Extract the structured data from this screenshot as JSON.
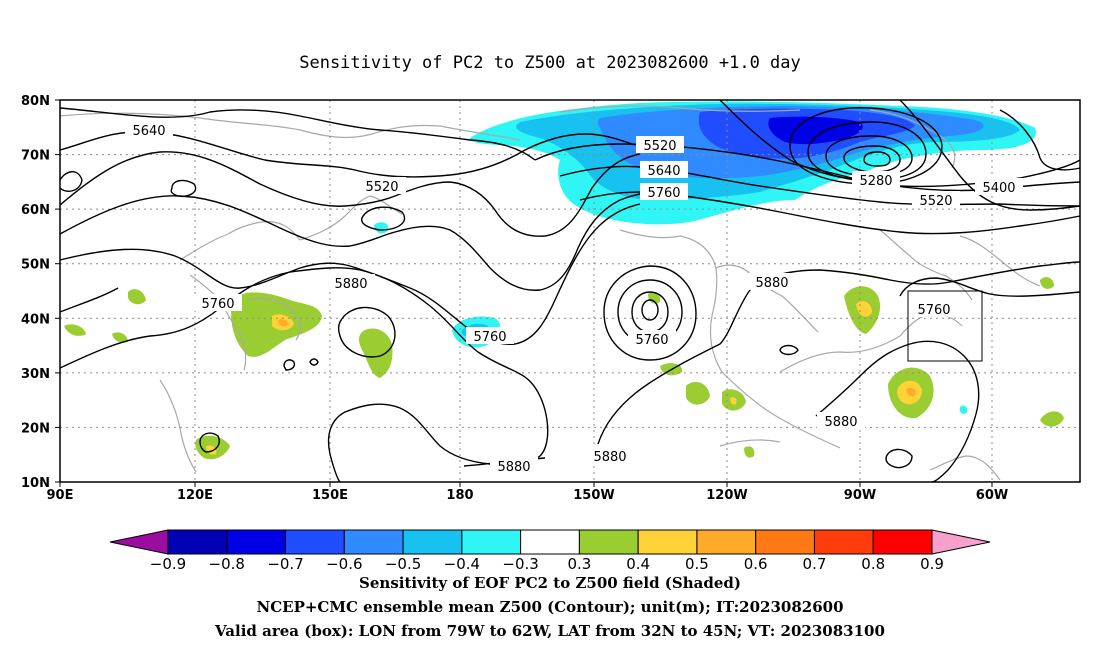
{
  "title": "Sensitivity of PC2 to Z500 at 2023082600 +1.0 day",
  "lat_ticks": [
    "80N",
    "70N",
    "60N",
    "50N",
    "40N",
    "30N",
    "20N",
    "10N"
  ],
  "lon_ticks": [
    "90E",
    "120E",
    "150E",
    "180",
    "150W",
    "120W",
    "90W",
    "60W"
  ],
  "contour_labels": [
    "5640",
    "5520",
    "5520",
    "5640",
    "5760",
    "5280",
    "5400",
    "5520",
    "5760",
    "5880",
    "5760",
    "5760",
    "5880",
    "5760",
    "5880",
    "5880",
    "5880"
  ],
  "colorbar": {
    "labels": [
      "−0.9",
      "−0.8",
      "−0.7",
      "−0.6",
      "−0.5",
      "−0.4",
      "−0.3",
      "0.3",
      "0.4",
      "0.5",
      "0.6",
      "0.7",
      "0.8",
      "0.9"
    ],
    "colors": [
      "#9a0da0",
      "#0000b5",
      "#0000e6",
      "#1f4dff",
      "#2f8bff",
      "#17c1f0",
      "#2ff5f5",
      "#ffffff",
      "#9acd32",
      "#ffd237",
      "#ffaa28",
      "#ff7a14",
      "#ff3c0a",
      "#ff0000",
      "#f8a0cc"
    ]
  },
  "footer": [
    "Sensitivity of EOF PC2 to Z500 field (Shaded)",
    "NCEP+CMC ensemble mean Z500 (Contour); unit(m); IT:2023082600",
    "Valid area (box): LON from 79W to 62W, LAT from 32N to 45N; VT: 2023083100"
  ],
  "valid_box": {
    "lon_from": "79W",
    "lon_to": "62W",
    "lat_from": "32N",
    "lat_to": "45N"
  }
}
